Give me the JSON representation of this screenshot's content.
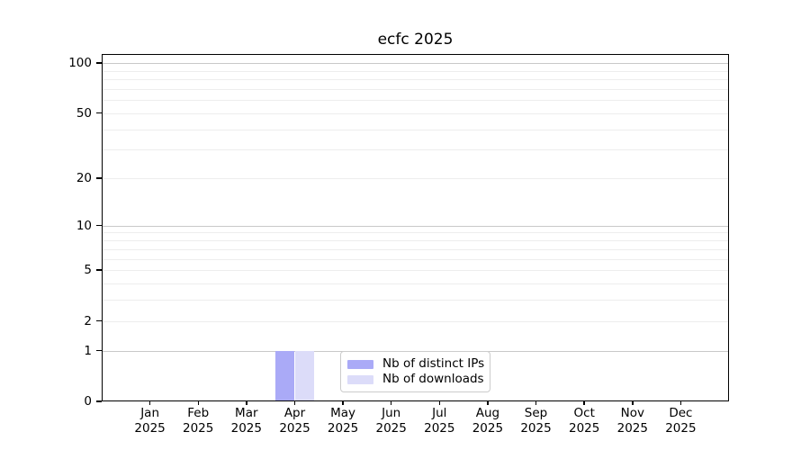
{
  "chart_data": {
    "type": "bar",
    "title": "ecfc 2025",
    "x_categories": [
      {
        "label": "Jan",
        "year": "2025"
      },
      {
        "label": "Feb",
        "year": "2025"
      },
      {
        "label": "Mar",
        "year": "2025"
      },
      {
        "label": "Apr",
        "year": "2025"
      },
      {
        "label": "May",
        "year": "2025"
      },
      {
        "label": "Jun",
        "year": "2025"
      },
      {
        "label": "Jul",
        "year": "2025"
      },
      {
        "label": "Aug",
        "year": "2025"
      },
      {
        "label": "Sep",
        "year": "2025"
      },
      {
        "label": "Oct",
        "year": "2025"
      },
      {
        "label": "Nov",
        "year": "2025"
      },
      {
        "label": "Dec",
        "year": "2025"
      }
    ],
    "series": [
      {
        "name": "Nb of distinct IPs",
        "color": "#aaaaf7",
        "values": [
          0,
          0,
          0,
          1,
          0,
          0,
          0,
          0,
          0,
          0,
          0,
          0
        ]
      },
      {
        "name": "Nb of downloads",
        "color": "#dcdcf9",
        "values": [
          0,
          0,
          0,
          1,
          0,
          0,
          0,
          0,
          0,
          0,
          0,
          0
        ]
      }
    ],
    "y_axis": {
      "scale": "log1p",
      "tick_labels": [
        0,
        1,
        2,
        5,
        10,
        20,
        50,
        100
      ],
      "major_gridlines": [
        1,
        10,
        100
      ],
      "minor_gridlines": [
        2,
        3,
        4,
        5,
        6,
        7,
        8,
        9,
        20,
        30,
        40,
        50,
        60,
        70,
        80,
        90
      ],
      "ymax": 113.2,
      "grid": true,
      "major_grid_color": "#c9c9c9",
      "minor_grid_color": "#ededed"
    },
    "xlabel": "",
    "ylabel": "",
    "ylim": [
      0,
      113.2
    ],
    "bar_width_fraction": 0.4,
    "legend": {
      "position": "lower center",
      "border_color": "#cccccc",
      "entries": [
        {
          "label": "Nb of distinct IPs",
          "color": "#aaaaf7"
        },
        {
          "label": "Nb of downloads",
          "color": "#dcdcf9"
        }
      ]
    }
  }
}
